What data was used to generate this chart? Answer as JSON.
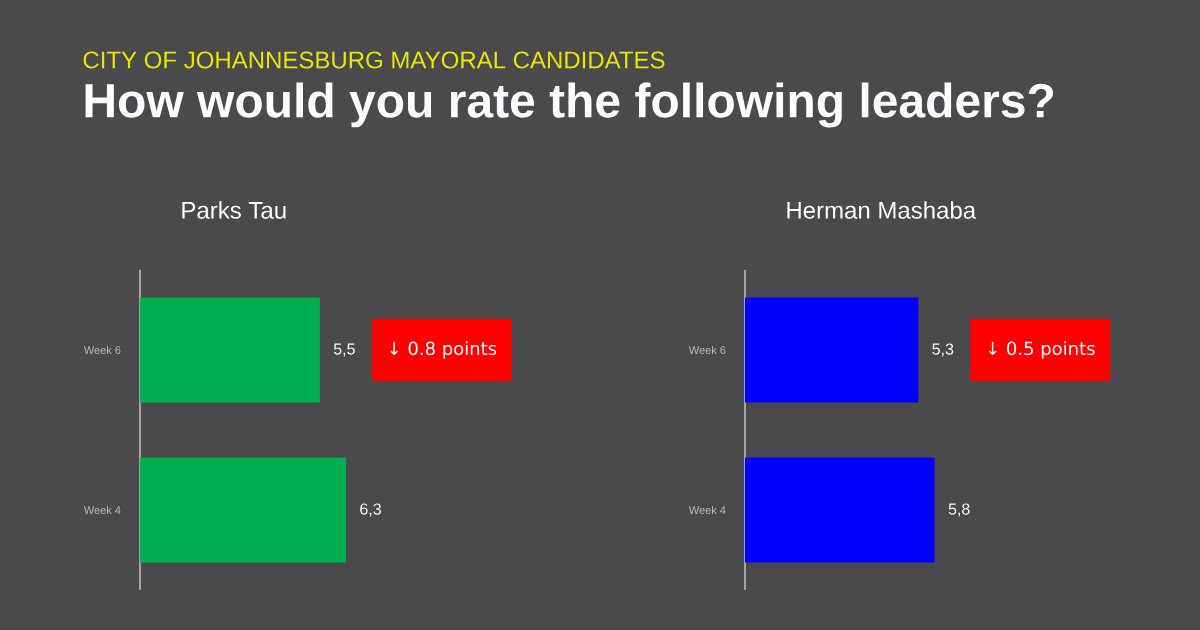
{
  "chart_data": [
    {
      "type": "bar",
      "orientation": "horizontal",
      "title": "Parks Tau",
      "categories": [
        "Week 6",
        "Week 4"
      ],
      "values": [
        5.5,
        6.3
      ],
      "value_labels": [
        "5,5",
        "6,3"
      ],
      "color": "#00b050",
      "annotations": [
        "CITY OF JOHANNESBURG MAYORAL CANDIDATES",
        "How would you rate the following leaders?",
        "↓ 0.8 points"
      ]
    },
    {
      "type": "bar",
      "orientation": "horizontal",
      "title": "Herman Mashaba",
      "categories": [
        "Week 6",
        "Week 4"
      ],
      "values": [
        5.3,
        5.8
      ],
      "value_labels": [
        "5,3",
        "5,8"
      ],
      "color": "#0000ff",
      "annotations": [
        "↓ 0.5 points"
      ]
    }
  ]
}
